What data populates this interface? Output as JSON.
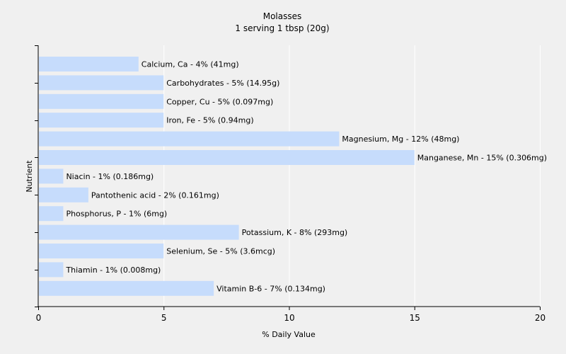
{
  "chart_data": {
    "type": "bar",
    "orientation": "horizontal",
    "title": "Molasses",
    "subtitle": "1 serving 1 tbsp (20g)",
    "xlabel": "% Daily Value",
    "ylabel": "Nutrient",
    "xlim": [
      0,
      20
    ],
    "xticks": [
      0,
      5,
      10,
      15,
      20
    ],
    "grid": true,
    "legend": "none",
    "bar_color": "#c6dcfc",
    "categories": [
      "Calcium, Ca",
      "Carbohydrates",
      "Copper, Cu",
      "Iron, Fe",
      "Magnesium, Mg",
      "Manganese, Mn",
      "Niacin",
      "Pantothenic acid",
      "Phosphorus, P",
      "Potassium, K",
      "Selenium, Se",
      "Thiamin",
      "Vitamin B-6"
    ],
    "values": [
      4,
      5,
      5,
      5,
      12,
      15,
      1,
      2,
      1,
      8,
      5,
      1,
      7
    ],
    "labels": [
      "Calcium, Ca - 4% (41mg)",
      "Carbohydrates - 5% (14.95g)",
      "Copper, Cu - 5% (0.097mg)",
      "Iron, Fe - 5% (0.94mg)",
      "Magnesium, Mg - 12% (48mg)",
      "Manganese, Mn - 15% (0.306mg)",
      "Niacin - 1% (0.186mg)",
      "Pantothenic acid - 2% (0.161mg)",
      "Phosphorus, P - 1% (6mg)",
      "Potassium, K - 8% (293mg)",
      "Selenium, Se - 5% (3.6mcg)",
      "Thiamin - 1% (0.008mg)",
      "Vitamin B-6 - 7% (0.134mg)"
    ]
  }
}
